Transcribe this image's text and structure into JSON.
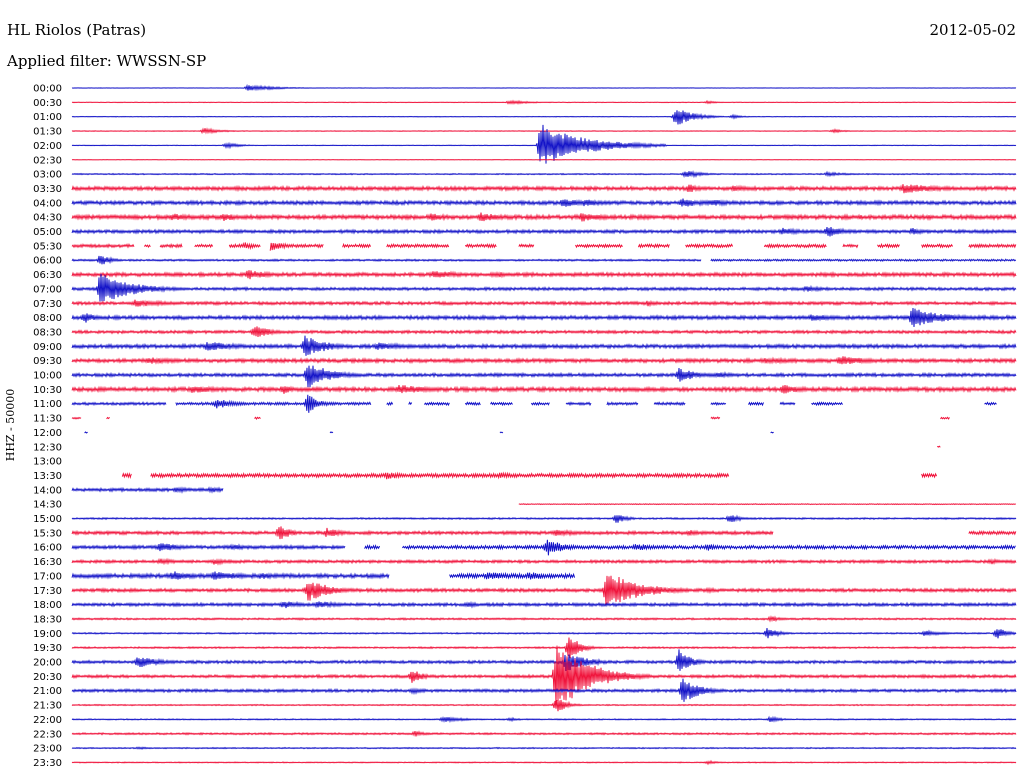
{
  "header": {
    "station": "HL Riolos (Patras)",
    "date": "2012-05-02",
    "filter": "Applied filter: WWSSN-SP"
  },
  "chart_data": {
    "type": "line",
    "title": "HL Riolos (Patras)",
    "subtitle": "Applied filter: WWSSN-SP",
    "date": "2012-05-02",
    "ylabel": "HHZ - 50000",
    "xlabel": "",
    "x_range_minutes": [
      0,
      30
    ],
    "grid": false,
    "legend": "none",
    "colors": {
      "even_row": "#1414c8",
      "odd_row": "#f0143c"
    },
    "rows": [
      {
        "label": "00:00",
        "level": 0.25,
        "segments": [
          [
            0,
            30
          ]
        ],
        "events": [
          [
            5.6,
            3,
            2.5
          ]
        ]
      },
      {
        "label": "00:30",
        "level": 0.3,
        "segments": [
          [
            0,
            30
          ]
        ],
        "events": [
          [
            13.9,
            2,
            2
          ],
          [
            20.2,
            1.5,
            1
          ]
        ]
      },
      {
        "label": "01:00",
        "level": 0.3,
        "segments": [
          [
            0,
            30
          ]
        ],
        "events": [
          [
            19.2,
            10,
            1.5
          ],
          [
            21,
            2,
            1
          ]
        ]
      },
      {
        "label": "01:30",
        "level": 0.35,
        "segments": [
          [
            0,
            30
          ]
        ],
        "events": [
          [
            4.2,
            3,
            1.5
          ],
          [
            24.2,
            2,
            1
          ]
        ]
      },
      {
        "label": "02:00",
        "level": 0.3,
        "segments": [
          [
            0,
            30
          ]
        ],
        "events": [
          [
            14.9,
            22,
            4
          ],
          [
            4.9,
            3,
            1.2
          ]
        ]
      },
      {
        "label": "02:30",
        "level": 0.25,
        "segments": [
          [
            0,
            30
          ]
        ],
        "events": []
      },
      {
        "label": "03:00",
        "level": 0.6,
        "segments": [
          [
            0,
            30
          ]
        ],
        "events": [
          [
            19.5,
            4,
            1.5
          ],
          [
            24,
            2,
            2
          ]
        ]
      },
      {
        "label": "03:30",
        "level": 1.8,
        "segments": [
          [
            0,
            30
          ]
        ],
        "events": [
          [
            26.4,
            5,
            4
          ],
          [
            19.6,
            5,
            1
          ],
          [
            21,
            3,
            2
          ]
        ]
      },
      {
        "label": "04:00",
        "level": 1.8,
        "segments": [
          [
            0,
            30
          ]
        ],
        "events": [
          [
            15.6,
            5,
            2
          ],
          [
            16.3,
            4,
            2
          ],
          [
            19.4,
            5,
            2
          ],
          [
            20.3,
            4,
            2
          ]
        ]
      },
      {
        "label": "04:30",
        "level": 2.0,
        "segments": [
          [
            0,
            30
          ]
        ],
        "events": [
          [
            3.2,
            4,
            2
          ],
          [
            4.8,
            4,
            2
          ],
          [
            11.4,
            4,
            2
          ],
          [
            13,
            5,
            2
          ],
          [
            16.2,
            5,
            2
          ]
        ]
      },
      {
        "label": "05:00",
        "level": 1.6,
        "segments": [
          [
            0,
            30
          ]
        ],
        "events": [
          [
            22.6,
            4,
            2
          ],
          [
            24,
            6,
            1.5
          ],
          [
            26.7,
            4,
            1
          ]
        ]
      },
      {
        "label": "05:30",
        "level": 1.5,
        "segments": [
          [
            0,
            2
          ],
          [
            2.3,
            2.5
          ],
          [
            2.8,
            3.5
          ],
          [
            3.9,
            4.5
          ],
          [
            5,
            6
          ],
          [
            6.3,
            8
          ],
          [
            8.6,
            9.5
          ],
          [
            10,
            12
          ],
          [
            12.5,
            13.5
          ],
          [
            14.2,
            14.7
          ],
          [
            16,
            17.5
          ],
          [
            18,
            19
          ],
          [
            19.5,
            21
          ],
          [
            22,
            24
          ],
          [
            24.5,
            25
          ],
          [
            25.6,
            26.3
          ],
          [
            27,
            28
          ],
          [
            28.5,
            30
          ]
        ],
        "events": [
          [
            6.2,
            6,
            1.5
          ],
          [
            5.5,
            4,
            1
          ]
        ]
      },
      {
        "label": "06:00",
        "level": 0.9,
        "segments": [
          [
            0,
            20
          ],
          [
            20.3,
            30
          ]
        ],
        "events": [
          [
            0.9,
            6,
            1
          ]
        ]
      },
      {
        "label": "06:30",
        "level": 1.8,
        "segments": [
          [
            0,
            30
          ]
        ],
        "events": [
          [
            5.6,
            5,
            2
          ],
          [
            11.5,
            4,
            3
          ],
          [
            13.5,
            3,
            2
          ]
        ]
      },
      {
        "label": "07:00",
        "level": 1.4,
        "segments": [
          [
            0,
            30
          ]
        ],
        "events": [
          [
            0.9,
            16,
            3
          ],
          [
            23.3,
            3,
            2
          ]
        ]
      },
      {
        "label": "07:30",
        "level": 1.5,
        "segments": [
          [
            0,
            30
          ]
        ],
        "events": [
          [
            2,
            4,
            3
          ],
          [
            18.3,
            3,
            1
          ]
        ]
      },
      {
        "label": "08:00",
        "level": 1.8,
        "segments": [
          [
            0,
            30
          ]
        ],
        "events": [
          [
            0.4,
            6,
            1
          ],
          [
            26.7,
            10,
            3
          ],
          [
            23.5,
            4,
            2
          ]
        ]
      },
      {
        "label": "08:30",
        "level": 1.4,
        "segments": [
          [
            0,
            30
          ]
        ],
        "events": [
          [
            5.8,
            7,
            1.5
          ]
        ]
      },
      {
        "label": "09:00",
        "level": 1.8,
        "segments": [
          [
            0,
            30
          ]
        ],
        "events": [
          [
            4.3,
            5,
            3
          ],
          [
            7.4,
            12,
            2
          ],
          [
            9.7,
            4,
            3
          ]
        ]
      },
      {
        "label": "09:30",
        "level": 1.8,
        "segments": [
          [
            0,
            30
          ]
        ],
        "events": [
          [
            2.4,
            4,
            3
          ],
          [
            22,
            3,
            4
          ],
          [
            24.4,
            5,
            3
          ]
        ]
      },
      {
        "label": "10:00",
        "level": 1.6,
        "segments": [
          [
            0,
            30
          ]
        ],
        "events": [
          [
            7.5,
            14,
            2
          ],
          [
            19.3,
            8,
            1.5
          ],
          [
            20.5,
            3,
            2
          ]
        ]
      },
      {
        "label": "10:30",
        "level": 2.0,
        "segments": [
          [
            0,
            30
          ]
        ],
        "events": [
          [
            3.8,
            4,
            3
          ],
          [
            10.4,
            5,
            3
          ],
          [
            22.6,
            5,
            2
          ],
          [
            6.7,
            5,
            1
          ]
        ]
      },
      {
        "label": "11:00",
        "level": 1.3,
        "segments": [
          [
            0,
            3
          ],
          [
            3.3,
            9.5
          ],
          [
            10,
            10.2
          ],
          [
            10.7,
            10.8
          ],
          [
            11.2,
            12
          ],
          [
            12.5,
            13
          ],
          [
            13.3,
            14
          ],
          [
            14.6,
            15.2
          ],
          [
            15.7,
            16.5
          ],
          [
            17,
            18
          ],
          [
            18.5,
            19.5
          ],
          [
            20.3,
            20.8
          ],
          [
            21.5,
            22
          ],
          [
            22.5,
            23
          ],
          [
            23.5,
            24.5
          ],
          [
            29,
            29.4
          ]
        ],
        "events": [
          [
            4.6,
            5,
            2
          ],
          [
            7.5,
            10,
            1
          ]
        ]
      },
      {
        "label": "11:30",
        "level": 1.0,
        "segments": [
          [
            0,
            0.3
          ],
          [
            1.1,
            1.2
          ],
          [
            5.8,
            6
          ],
          [
            20.3,
            20.6
          ],
          [
            27.6,
            27.9
          ]
        ],
        "events": []
      },
      {
        "label": "12:00",
        "level": 0.6,
        "segments": [
          [
            0.4,
            0.5
          ],
          [
            8.2,
            8.3
          ],
          [
            13.6,
            13.7
          ],
          [
            22.2,
            22.3
          ]
        ],
        "events": []
      },
      {
        "label": "12:30",
        "level": 0.6,
        "segments": [
          [
            27.5,
            27.6
          ]
        ],
        "events": []
      },
      {
        "label": "13:00",
        "level": 0.6,
        "segments": [],
        "events": []
      },
      {
        "label": "13:30",
        "level": 1.8,
        "segments": [
          [
            1.6,
            1.9
          ],
          [
            2.5,
            20.9
          ],
          [
            27,
            27.5
          ]
        ],
        "events": [
          [
            10,
            4,
            2
          ],
          [
            13.6,
            3,
            2
          ],
          [
            26.5,
            4,
            2
          ]
        ]
      },
      {
        "label": "14:00",
        "level": 1.5,
        "segments": [
          [
            0,
            4.8
          ]
        ],
        "events": [
          [
            3.3,
            3,
            2
          ],
          [
            4.4,
            3,
            1.5
          ]
        ]
      },
      {
        "label": "14:30",
        "level": 0.4,
        "segments": [
          [
            14.2,
            30
          ]
        ],
        "events": []
      },
      {
        "label": "15:00",
        "level": 0.8,
        "segments": [
          [
            0,
            30
          ]
        ],
        "events": [
          [
            17.3,
            5,
            1
          ],
          [
            20.9,
            5,
            1
          ]
        ]
      },
      {
        "label": "15:30",
        "level": 1.6,
        "segments": [
          [
            0,
            22.3
          ],
          [
            28.5,
            30
          ]
        ],
        "events": [
          [
            6.6,
            9,
            1
          ],
          [
            8.1,
            5,
            1.5
          ],
          [
            15.4,
            4,
            2
          ],
          [
            19.6,
            3,
            2
          ]
        ]
      },
      {
        "label": "16:00",
        "level": 1.6,
        "segments": [
          [
            0,
            8.7
          ],
          [
            9.3,
            9.8
          ],
          [
            10.5,
            30
          ]
        ],
        "events": [
          [
            2.8,
            5,
            2
          ],
          [
            5.1,
            3,
            2
          ],
          [
            15.1,
            10,
            1.5
          ],
          [
            17.9,
            4,
            2
          ],
          [
            20.2,
            4,
            1
          ]
        ]
      },
      {
        "label": "16:30",
        "level": 1.4,
        "segments": [
          [
            0,
            30
          ]
        ],
        "events": [
          [
            2.8,
            3,
            2
          ],
          [
            4.5,
            3,
            2
          ],
          [
            29.2,
            3,
            1
          ]
        ]
      },
      {
        "label": "17:00",
        "level": 2.0,
        "segments": [
          [
            0,
            10.1
          ],
          [
            12,
            16
          ]
        ],
        "events": [
          [
            3.2,
            5,
            2
          ],
          [
            4.5,
            5,
            3
          ],
          [
            6,
            4,
            2
          ],
          [
            13.2,
            4,
            3
          ],
          [
            14.5,
            4,
            3
          ]
        ]
      },
      {
        "label": "17:30",
        "level": 1.6,
        "segments": [
          [
            0,
            30
          ]
        ],
        "events": [
          [
            7.5,
            12,
            2
          ],
          [
            17,
            20,
            3
          ],
          [
            20.2,
            3,
            1
          ]
        ]
      },
      {
        "label": "18:00",
        "level": 1.5,
        "segments": [
          [
            0,
            30
          ]
        ],
        "events": [
          [
            6.7,
            4,
            2
          ],
          [
            7.8,
            4,
            2
          ],
          [
            12.6,
            3,
            1
          ]
        ]
      },
      {
        "label": "18:30",
        "level": 0.9,
        "segments": [
          [
            0,
            30
          ]
        ],
        "events": [
          [
            22.2,
            3,
            1
          ]
        ]
      },
      {
        "label": "19:00",
        "level": 0.7,
        "segments": [
          [
            0,
            30
          ]
        ],
        "events": [
          [
            22.1,
            6,
            1
          ],
          [
            27.1,
            3,
            2
          ],
          [
            29.4,
            6,
            1
          ]
        ]
      },
      {
        "label": "19:30",
        "level": 0.8,
        "segments": [
          [
            0,
            30
          ]
        ],
        "events": [
          [
            15.8,
            14,
            1
          ]
        ]
      },
      {
        "label": "20:00",
        "level": 1.4,
        "segments": [
          [
            0,
            30
          ]
        ],
        "events": [
          [
            2.1,
            6,
            2
          ],
          [
            15.7,
            10,
            2
          ],
          [
            19.3,
            14,
            1
          ]
        ]
      },
      {
        "label": "20:30",
        "level": 1.4,
        "segments": [
          [
            0,
            30
          ]
        ],
        "events": [
          [
            10.8,
            8,
            1
          ],
          [
            15.4,
            36,
            3
          ]
        ]
      },
      {
        "label": "21:00",
        "level": 1.4,
        "segments": [
          [
            0,
            30
          ]
        ],
        "events": [
          [
            10.8,
            3,
            1.5
          ],
          [
            19.4,
            14,
            1.5
          ]
        ]
      },
      {
        "label": "21:30",
        "level": 0.6,
        "segments": [
          [
            0,
            30
          ]
        ],
        "events": [
          [
            15.4,
            8,
            1
          ]
        ]
      },
      {
        "label": "22:00",
        "level": 0.6,
        "segments": [
          [
            0,
            30
          ]
        ],
        "events": [
          [
            11.8,
            3,
            2
          ],
          [
            13.9,
            2,
            1
          ],
          [
            22.2,
            3,
            1
          ]
        ]
      },
      {
        "label": "22:30",
        "level": 0.9,
        "segments": [
          [
            0,
            30
          ]
        ],
        "events": [
          [
            10.9,
            3,
            1
          ]
        ]
      },
      {
        "label": "23:00",
        "level": 0.6,
        "segments": [
          [
            0,
            30
          ]
        ],
        "events": [
          [
            2.1,
            1.5,
            1
          ]
        ]
      },
      {
        "label": "23:30",
        "level": 0.5,
        "segments": [
          [
            0,
            30
          ]
        ],
        "events": [
          [
            20.2,
            2,
            1
          ]
        ]
      }
    ]
  }
}
